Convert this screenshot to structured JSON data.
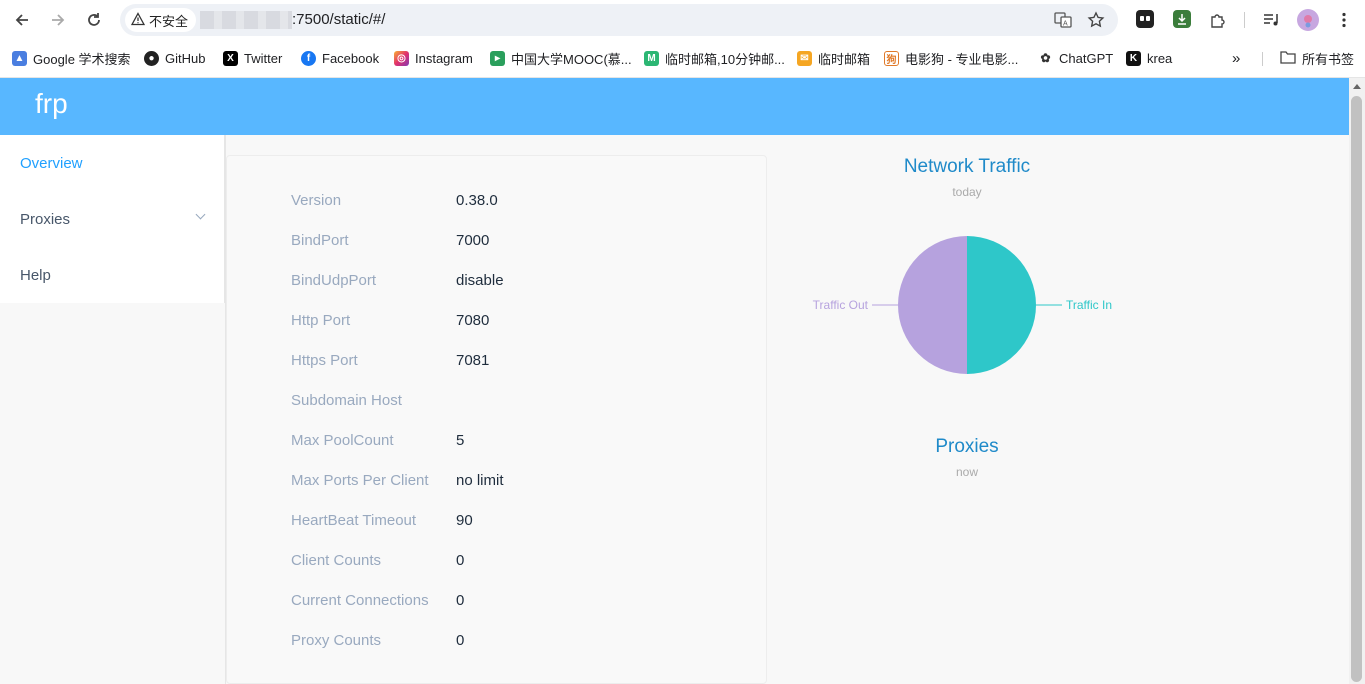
{
  "browser": {
    "security_label": "不安全",
    "url": ":7500/static/#/",
    "bookmarks": [
      {
        "label": "Google 学术搜索",
        "icon": "graduation-cap-icon"
      },
      {
        "label": "GitHub",
        "icon": "github-icon"
      },
      {
        "label": "Twitter",
        "icon": "x-icon"
      },
      {
        "label": "Facebook",
        "icon": "facebook-icon"
      },
      {
        "label": "Instagram",
        "icon": "instagram-icon"
      },
      {
        "label": "中国大学MOOC(慕...",
        "icon": "mooc-icon"
      },
      {
        "label": "临时邮箱,10分钟邮...",
        "icon": "mail-m-icon"
      },
      {
        "label": "临时邮箱",
        "icon": "envelope-icon"
      },
      {
        "label": "电影狗 - 专业电影...",
        "icon": "movie-dog-icon"
      },
      {
        "label": "ChatGPT",
        "icon": "chatgpt-icon"
      },
      {
        "label": "krea",
        "icon": "krea-icon"
      }
    ],
    "all_bookmarks_label": "所有书签"
  },
  "app": {
    "logo": "frp",
    "menu": [
      {
        "label": "Overview",
        "active": true
      },
      {
        "label": "Proxies",
        "has_submenu": true
      },
      {
        "label": "Help"
      }
    ]
  },
  "server_info": [
    {
      "label": "Version",
      "value": "0.38.0"
    },
    {
      "label": "BindPort",
      "value": "7000"
    },
    {
      "label": "BindUdpPort",
      "value": "disable"
    },
    {
      "label": "Http Port",
      "value": "7080"
    },
    {
      "label": "Https Port",
      "value": "7081"
    },
    {
      "label": "Subdomain Host",
      "value": ""
    },
    {
      "label": "Max PoolCount",
      "value": "5"
    },
    {
      "label": "Max Ports Per Client",
      "value": "no limit"
    },
    {
      "label": "HeartBeat Timeout",
      "value": "90"
    },
    {
      "label": "Client Counts",
      "value": "0"
    },
    {
      "label": "Current Connections",
      "value": "0"
    },
    {
      "label": "Proxy Counts",
      "value": "0"
    }
  ],
  "traffic_chart": {
    "title": "Network Traffic",
    "subtitle": "today",
    "colors": {
      "traffic_in": "#2ec7c9",
      "traffic_out": "#b6a2de"
    }
  },
  "chart_data": {
    "type": "pie",
    "title": "Network Traffic",
    "subtitle": "today",
    "slices": [
      {
        "name": "Traffic In",
        "value": 50,
        "color": "#2ec7c9"
      },
      {
        "name": "Traffic Out",
        "value": 50,
        "color": "#b6a2de"
      }
    ]
  },
  "proxies_chart": {
    "title": "Proxies",
    "subtitle": "now"
  },
  "colors": {
    "header": "#58b7ff",
    "active_menu": "#20a0ff",
    "label": "#99a9bf",
    "chart_title": "#1f8ac9"
  }
}
